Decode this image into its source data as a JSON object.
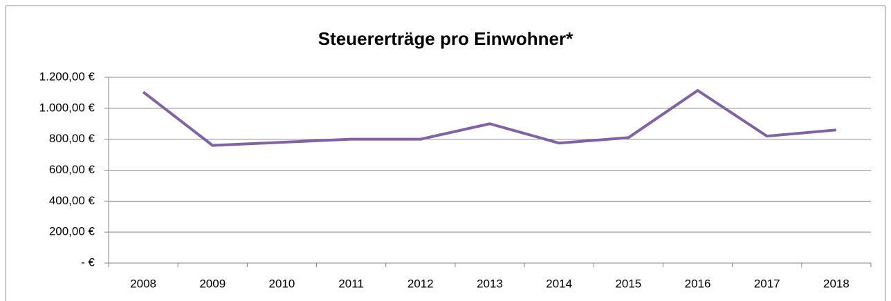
{
  "chart_data": {
    "type": "line",
    "title": "Steuererträge pro Einwohner*",
    "categories": [
      "2008",
      "2009",
      "2010",
      "2011",
      "2012",
      "2013",
      "2014",
      "2015",
      "2016",
      "2017",
      "2018"
    ],
    "series": [
      {
        "name": "Steuererträge pro Einwohner",
        "color": "#8064a2",
        "values": [
          1105,
          760,
          780,
          800,
          800,
          900,
          775,
          810,
          1115,
          820,
          860
        ]
      }
    ],
    "ylim": [
      0,
      1200
    ],
    "yticks": [
      {
        "value": 0,
        "label": "- €"
      },
      {
        "value": 200,
        "label": "200,00 €"
      },
      {
        "value": 400,
        "label": "400,00 €"
      },
      {
        "value": 600,
        "label": "600,00 €"
      },
      {
        "value": 800,
        "label": "800,00 €"
      },
      {
        "value": 1000,
        "label": "1.000,00 €"
      },
      {
        "value": 1200,
        "label": "1.200,00 €"
      }
    ],
    "grid": true
  }
}
